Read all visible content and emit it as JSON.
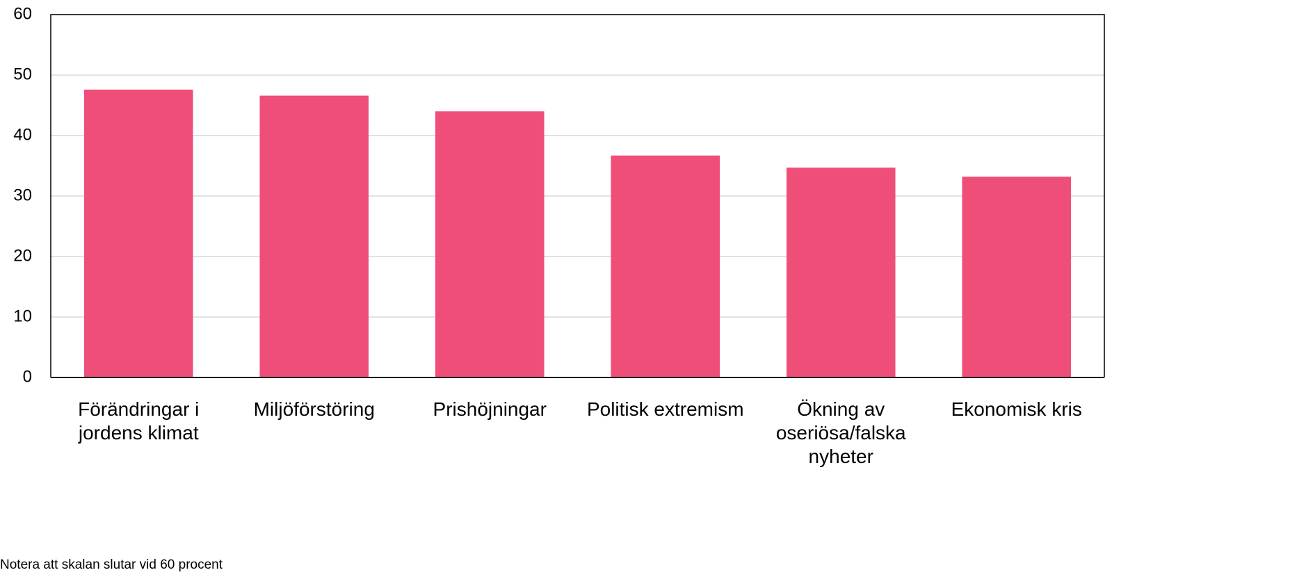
{
  "chart_data": {
    "type": "bar",
    "categories": [
      "Förändringar i jordens klimat",
      "Miljöförstöring",
      "Prishöjningar",
      "Politisk extremism",
      "Ökning av oseriösa/falska nyheter",
      "Ekonomisk kris"
    ],
    "values": [
      47.6,
      46.6,
      44.0,
      36.7,
      34.7,
      33.2
    ],
    "color": "#ef4e78",
    "ylim": [
      0,
      60
    ],
    "yticks": [
      0,
      10,
      20,
      30,
      40,
      50,
      60
    ],
    "grid": true,
    "note": "Notera att skalan slutar vid 60 procent"
  }
}
